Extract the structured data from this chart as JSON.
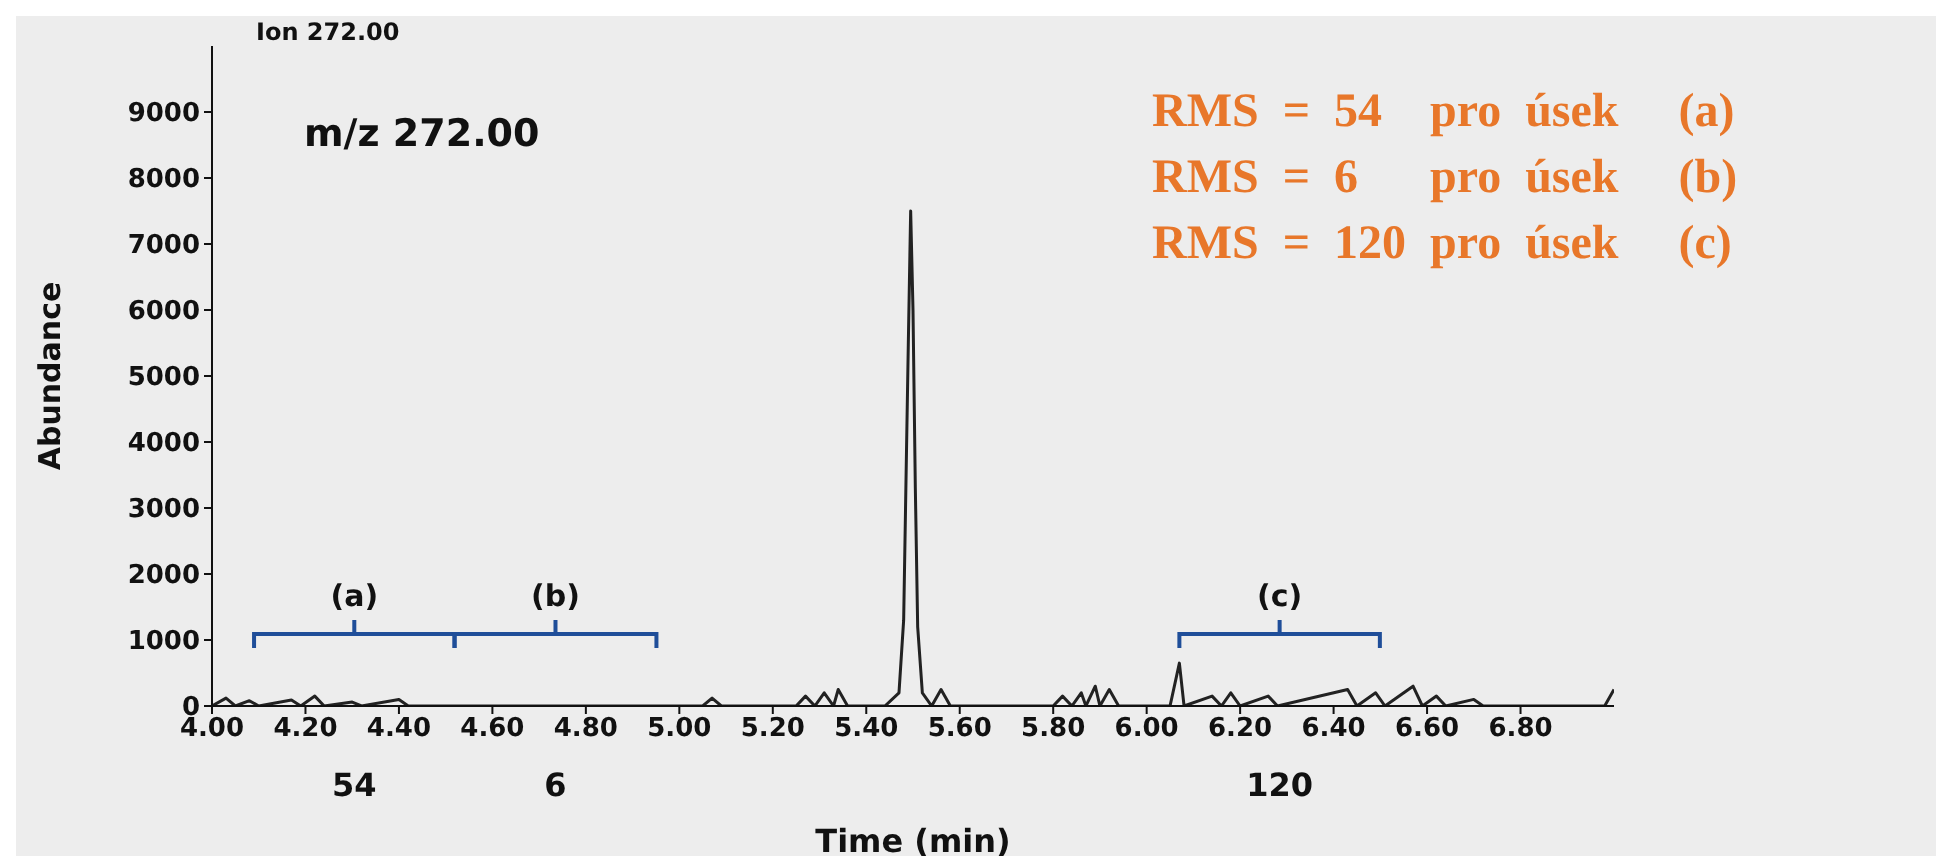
{
  "chart_data": {
    "type": "line",
    "title": "Ion 272.00",
    "xlabel": "Time (min)",
    "ylabel": "Abundance",
    "annotations": [
      "m/z 272.00",
      "RMS  =  54    pro  úsek     (a)",
      "RMS  =  6      pro  úsek     (b)",
      "RMS  =  120  pro  úsek     (c)",
      "(a)",
      "(b)",
      "(c)",
      "54",
      "6",
      "120"
    ],
    "x": [
      4.0,
      4.03,
      4.05,
      4.08,
      4.1,
      4.17,
      4.19,
      4.22,
      4.24,
      4.3,
      4.32,
      4.4,
      4.42,
      4.5,
      5.05,
      5.07,
      5.09,
      5.25,
      5.27,
      5.29,
      5.31,
      5.33,
      5.34,
      5.36,
      5.44,
      5.47,
      5.48,
      5.49,
      5.495,
      5.5,
      5.505,
      5.51,
      5.52,
      5.54,
      5.56,
      5.58,
      5.8,
      5.82,
      5.84,
      5.86,
      5.87,
      5.89,
      5.9,
      5.92,
      5.94,
      6.05,
      6.07,
      6.08,
      6.14,
      6.16,
      6.18,
      6.2,
      6.26,
      6.28,
      6.43,
      6.45,
      6.49,
      6.51,
      6.57,
      6.59,
      6.62,
      6.64,
      6.7,
      6.72,
      6.98,
      7.0
    ],
    "series": [
      {
        "color": "#222222",
        "values": [
          0,
          120,
          0,
          80,
          0,
          90,
          0,
          150,
          0,
          60,
          0,
          100,
          0,
          0,
          0,
          120,
          0,
          0,
          150,
          0,
          200,
          0,
          250,
          0,
          0,
          200,
          1300,
          5500,
          7500,
          6000,
          3300,
          1200,
          200,
          0,
          250,
          0,
          0,
          150,
          0,
          200,
          0,
          300,
          0,
          250,
          0,
          0,
          650,
          0,
          150,
          0,
          200,
          0,
          150,
          0,
          250,
          0,
          200,
          0,
          300,
          0,
          150,
          0,
          100,
          0,
          0,
          250
        ]
      }
    ],
    "xlim": [
      4.0,
      7.0
    ],
    "xticks": [
      {
        "value": 4.0,
        "label": "4.00"
      },
      {
        "value": 4.2,
        "label": "4.20"
      },
      {
        "value": 4.4,
        "label": "4.40"
      },
      {
        "value": 4.6,
        "label": "4.60"
      },
      {
        "value": 4.8,
        "label": "4.80"
      },
      {
        "value": 5.0,
        "label": "5.00"
      },
      {
        "value": 5.2,
        "label": "5.20"
      },
      {
        "value": 5.4,
        "label": "5.40"
      },
      {
        "value": 5.6,
        "label": "5.60"
      },
      {
        "value": 5.8,
        "label": "5.80"
      },
      {
        "value": 6.0,
        "label": "6.00"
      },
      {
        "value": 6.2,
        "label": "6.20"
      },
      {
        "value": 6.4,
        "label": "6.40"
      },
      {
        "value": 6.6,
        "label": "6.60"
      },
      {
        "value": 6.8,
        "label": "6.80"
      }
    ],
    "ylim": [
      0,
      10000
    ],
    "yticks": [
      0,
      1000,
      2000,
      3000,
      4000,
      5000,
      6000,
      7000,
      8000,
      9000
    ],
    "grid": false,
    "legend": false,
    "marker": "none",
    "line_style": "solid"
  }
}
